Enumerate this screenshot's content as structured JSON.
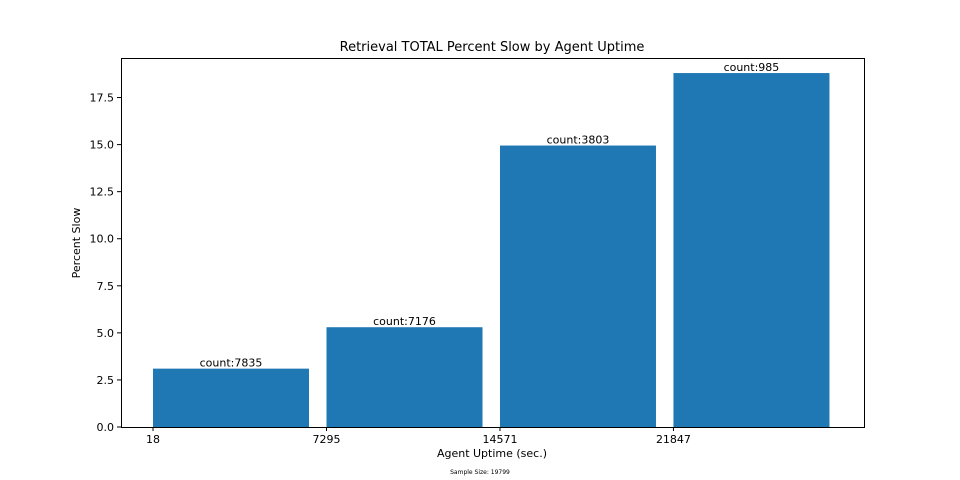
{
  "chart_data": {
    "type": "bar",
    "title": "Retrieval TOTAL Percent Slow by Agent Uptime",
    "xlabel": "Agent Uptime (sec.)",
    "ylabel": "Percent Slow",
    "footnote": "Sample Size: 19799",
    "x_ticks": [
      "18",
      "7295",
      "14571",
      "21847"
    ],
    "y_ticks": [
      "0.0",
      "2.5",
      "5.0",
      "7.5",
      "10.0",
      "12.5",
      "15.0",
      "17.5"
    ],
    "ylim": [
      0,
      19.6
    ],
    "bar_color": "#1f77b4",
    "grid": false,
    "legend": "none",
    "bars": [
      {
        "x_start": 18,
        "value": 3.1,
        "label": "count:7835"
      },
      {
        "x_start": 7295,
        "value": 5.3,
        "label": "count:7176"
      },
      {
        "x_start": 14571,
        "value": 14.95,
        "label": "count:3803"
      },
      {
        "x_start": 21847,
        "value": 18.8,
        "label": "count:985"
      }
    ]
  }
}
